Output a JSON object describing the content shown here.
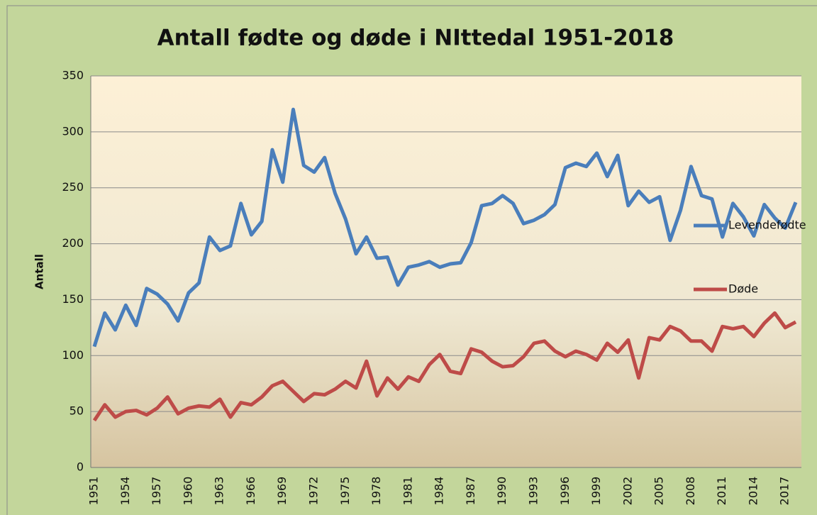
{
  "chart_data": {
    "type": "line",
    "title": "Antall fødte og døde i NIttedal 1951-2018",
    "y_label": "Antall",
    "categories": [
      "1951",
      null,
      null,
      "1954",
      null,
      null,
      "1957",
      null,
      null,
      "1960",
      null,
      null,
      "1963",
      null,
      null,
      "1966",
      null,
      null,
      "1969",
      null,
      null,
      "1972",
      null,
      null,
      "1975",
      null,
      null,
      "1978",
      null,
      null,
      "1981",
      null,
      null,
      "1984",
      null,
      null,
      "1987",
      null,
      null,
      "1990",
      null,
      null,
      "1993",
      null,
      null,
      "1996",
      null,
      null,
      "1999",
      null,
      null,
      "2002",
      null,
      null,
      "2005",
      null,
      null,
      "2008",
      null,
      null,
      "2011",
      null,
      null,
      "2014",
      null,
      null,
      "2017",
      null
    ],
    "series": [
      {
        "name": "Levendefødte",
        "color": "#4a7ebb",
        "values": [
          108,
          138,
          123,
          145,
          127,
          160,
          155,
          146,
          131,
          156,
          165,
          206,
          194,
          198,
          236,
          208,
          220,
          284,
          255,
          320,
          270,
          264,
          277,
          245,
          222,
          191,
          206,
          187,
          188,
          163,
          179,
          181,
          184,
          179,
          182,
          183,
          201,
          234,
          236,
          243,
          236,
          218,
          221,
          226,
          235,
          268,
          272,
          269,
          281,
          260,
          279,
          234,
          247,
          237,
          242,
          203,
          230,
          269,
          243,
          240,
          206,
          236,
          224,
          207,
          235,
          223,
          214,
          237
        ]
      },
      {
        "name": "Døde",
        "color": "#be4b48",
        "values": [
          42,
          56,
          45,
          50,
          51,
          47,
          53,
          63,
          48,
          53,
          55,
          54,
          61,
          45,
          58,
          56,
          63,
          73,
          77,
          68,
          59,
          66,
          65,
          70,
          77,
          71,
          95,
          64,
          80,
          70,
          81,
          77,
          92,
          101,
          86,
          84,
          106,
          103,
          95,
          90,
          91,
          99,
          111,
          113,
          104,
          99,
          104,
          101,
          96,
          111,
          103,
          114,
          80,
          116,
          114,
          126,
          122,
          113,
          113,
          104,
          126,
          124,
          126,
          117,
          129,
          138,
          125,
          130
        ]
      }
    ],
    "ylim": [
      0,
      350
    ],
    "yticks": [
      0,
      50,
      100,
      150,
      200,
      250,
      300,
      350
    ],
    "grid": true,
    "legend": "right"
  }
}
